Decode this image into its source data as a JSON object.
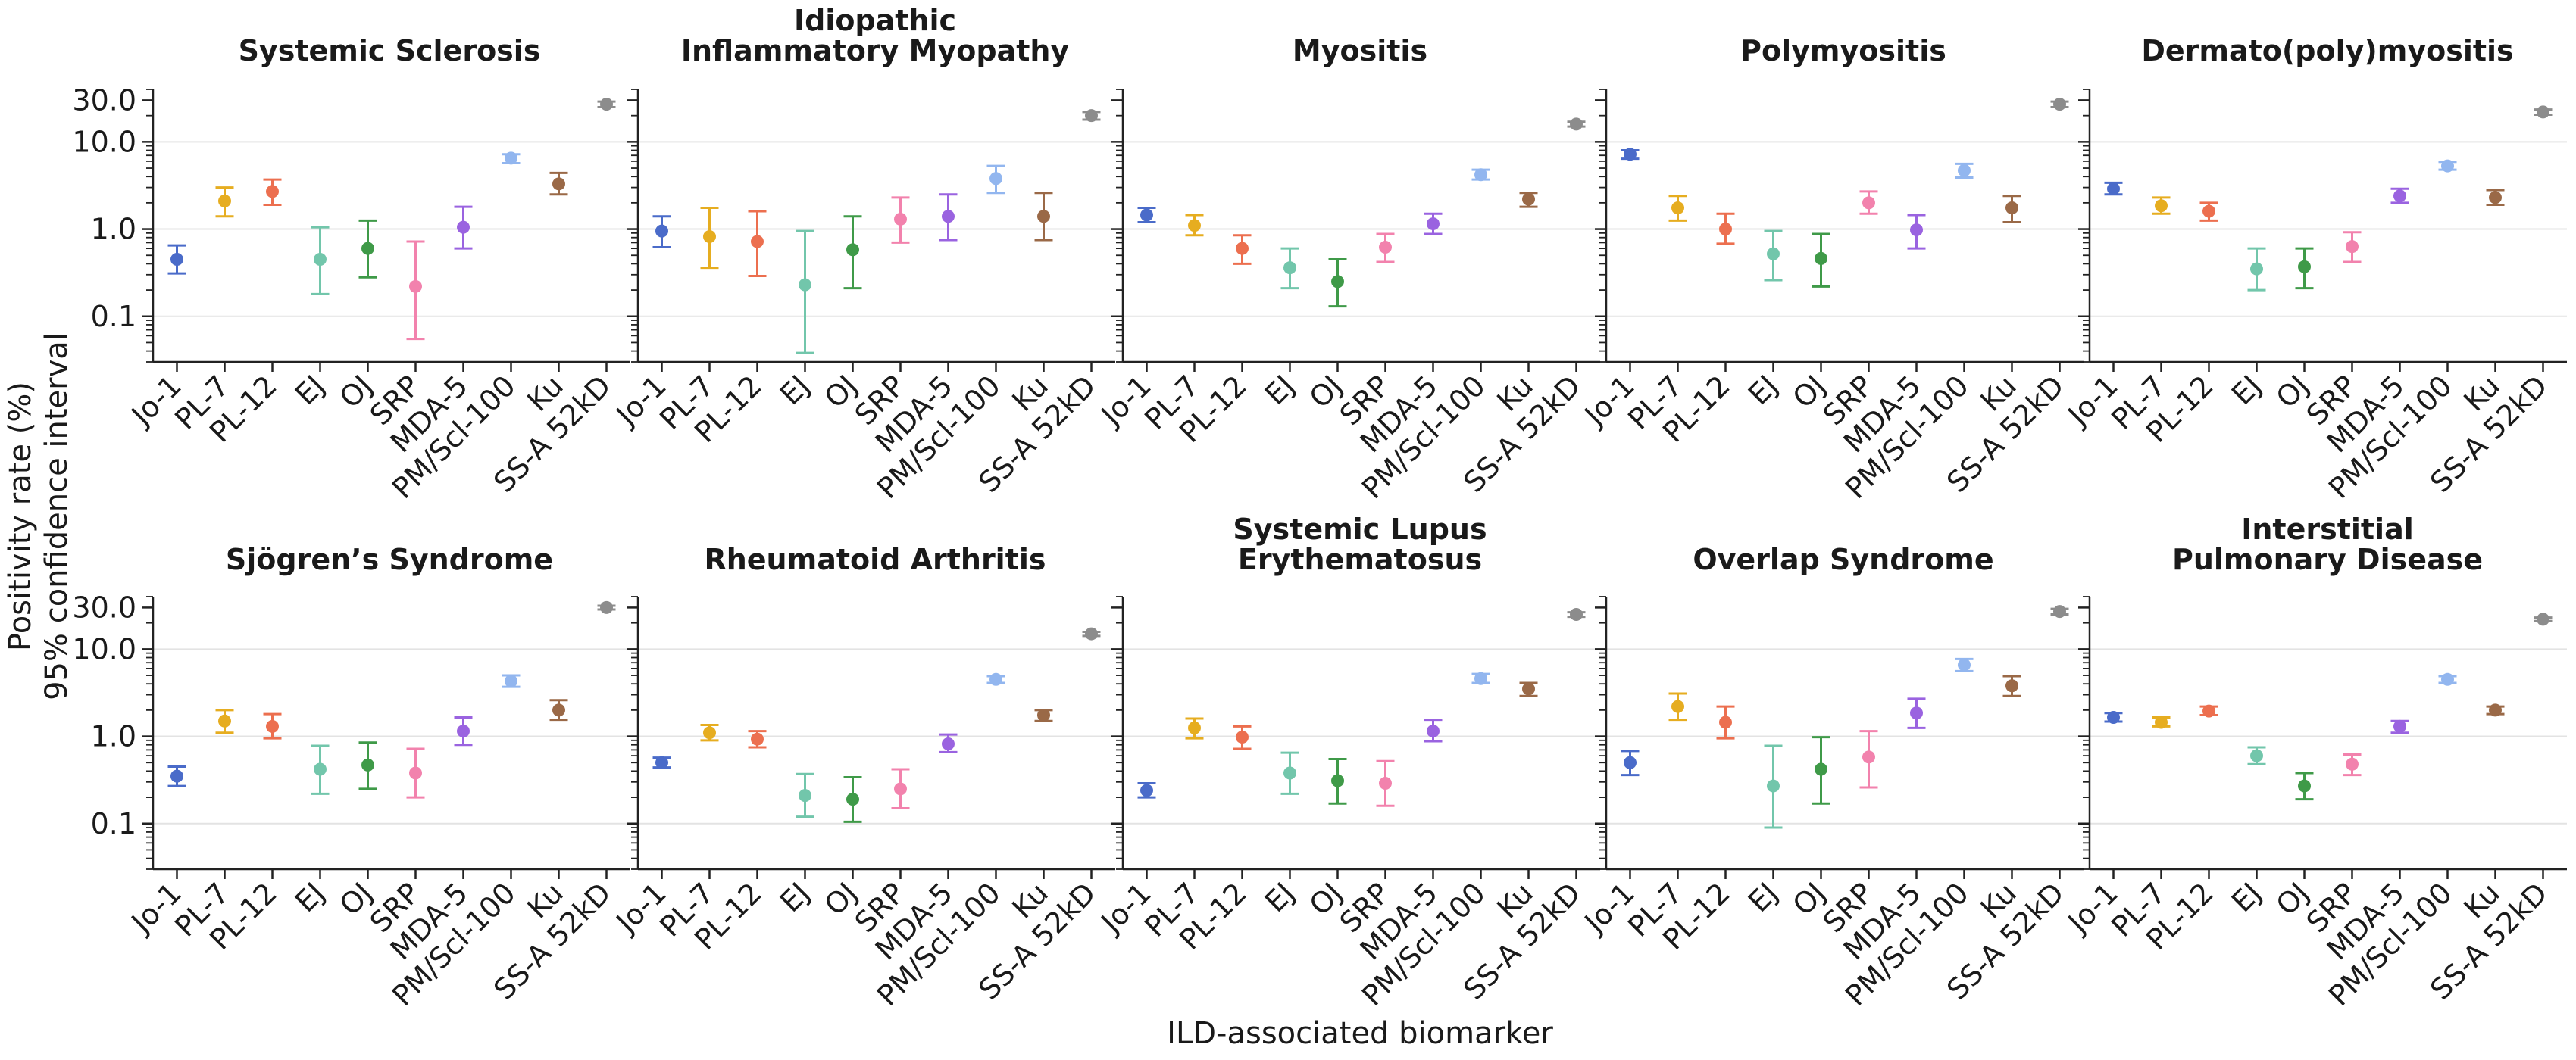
{
  "colors": {
    "Jo-1": "#4a6bc9",
    "PL-7": "#e6ad20",
    "PL-12": "#ec6f4f",
    "EJ": "#72c6ab",
    "OJ": "#3f9a48",
    "SRP": "#f282ad",
    "MDA-5": "#9a63e0",
    "PM/Scl-100": "#92b6ef",
    "Ku": "#9a6947",
    "SS-A 52kD": "#8c8c8c"
  },
  "figure": {
    "ylabel_line1": "Positivity rate (%)",
    "ylabel_line2": "95% confidence interval",
    "xlabel": "ILD-associated biomarker"
  },
  "chart_data": [
    {
      "type": "scatter",
      "title": "Systemic Sclerosis",
      "yscale": "log",
      "ylim": [
        0.03,
        40
      ],
      "yticks": [
        "0.1",
        "1.0",
        "10.0",
        "30.0"
      ],
      "categories": [
        "Jo-1",
        "PL-7",
        "PL-12",
        "EJ",
        "OJ",
        "SRP",
        "MDA-5",
        "PM/Scl-100",
        "Ku",
        "SS-A 52kD"
      ],
      "values": [
        0.45,
        2.1,
        2.7,
        0.45,
        0.6,
        0.22,
        1.05,
        6.5,
        3.3,
        27
      ],
      "lower": [
        0.31,
        1.4,
        1.9,
        0.18,
        0.28,
        0.055,
        0.6,
        5.7,
        2.5,
        25
      ],
      "upper": [
        0.65,
        3.0,
        3.7,
        1.05,
        1.25,
        0.72,
        1.8,
        7.2,
        4.4,
        29
      ]
    },
    {
      "type": "scatter",
      "title": "Idiopathic Inflammatory Myopathy",
      "title_lines": [
        "Idiopathic",
        "Inflammatory Myopathy"
      ],
      "yscale": "log",
      "ylim": [
        0.03,
        40
      ],
      "yticks": [
        "0.1",
        "1.0",
        "10.0",
        "30.0"
      ],
      "categories": [
        "Jo-1",
        "PL-7",
        "PL-12",
        "EJ",
        "OJ",
        "SRP",
        "MDA-5",
        "PM/Scl-100",
        "Ku",
        "SS-A 52kD"
      ],
      "values": [
        0.95,
        0.82,
        0.72,
        0.23,
        0.58,
        1.3,
        1.4,
        3.8,
        1.4,
        20
      ],
      "lower": [
        0.62,
        0.36,
        0.29,
        0.038,
        0.21,
        0.7,
        0.75,
        2.6,
        0.75,
        18
      ],
      "upper": [
        1.4,
        1.75,
        1.6,
        0.95,
        1.4,
        2.3,
        2.5,
        5.3,
        2.6,
        22
      ]
    },
    {
      "type": "scatter",
      "title": "Myositis",
      "yscale": "log",
      "ylim": [
        0.03,
        40
      ],
      "yticks": [
        "0.1",
        "1.0",
        "10.0",
        "30.0"
      ],
      "categories": [
        "Jo-1",
        "PL-7",
        "PL-12",
        "EJ",
        "OJ",
        "SRP",
        "MDA-5",
        "PM/Scl-100",
        "Ku",
        "SS-A 52kD"
      ],
      "values": [
        1.45,
        1.1,
        0.6,
        0.36,
        0.25,
        0.62,
        1.15,
        4.2,
        2.2,
        16
      ],
      "lower": [
        1.2,
        0.85,
        0.4,
        0.21,
        0.13,
        0.42,
        0.88,
        3.7,
        1.8,
        15
      ],
      "upper": [
        1.75,
        1.45,
        0.85,
        0.6,
        0.45,
        0.88,
        1.5,
        4.8,
        2.6,
        17
      ]
    },
    {
      "type": "scatter",
      "title": "Polymyositis",
      "yscale": "log",
      "ylim": [
        0.03,
        40
      ],
      "yticks": [
        "0.1",
        "1.0",
        "10.0",
        "30.0"
      ],
      "categories": [
        "Jo-1",
        "PL-7",
        "PL-12",
        "EJ",
        "OJ",
        "SRP",
        "MDA-5",
        "PM/Scl-100",
        "Ku",
        "SS-A 52kD"
      ],
      "values": [
        7.2,
        1.75,
        1.0,
        0.52,
        0.46,
        2.0,
        0.98,
        4.7,
        1.75,
        27
      ],
      "lower": [
        6.4,
        1.25,
        0.68,
        0.26,
        0.22,
        1.5,
        0.6,
        3.9,
        1.2,
        25
      ],
      "upper": [
        8.0,
        2.4,
        1.5,
        0.95,
        0.88,
        2.7,
        1.45,
        5.6,
        2.4,
        29
      ]
    },
    {
      "type": "scatter",
      "title": "Dermato(poly)myositis",
      "yscale": "log",
      "ylim": [
        0.03,
        40
      ],
      "yticks": [
        "0.1",
        "1.0",
        "10.0",
        "30.0"
      ],
      "categories": [
        "Jo-1",
        "PL-7",
        "PL-12",
        "EJ",
        "OJ",
        "SRP",
        "MDA-5",
        "PM/Scl-100",
        "Ku",
        "SS-A 52kD"
      ],
      "values": [
        2.9,
        1.85,
        1.6,
        0.35,
        0.37,
        0.63,
        2.4,
        5.3,
        2.3,
        22
      ],
      "lower": [
        2.5,
        1.5,
        1.25,
        0.2,
        0.21,
        0.42,
        2.0,
        4.8,
        1.9,
        20.5
      ],
      "upper": [
        3.4,
        2.3,
        2.0,
        0.6,
        0.6,
        0.92,
        2.9,
        5.9,
        2.8,
        23.5
      ]
    },
    {
      "type": "scatter",
      "title": "Sjögren’s Syndrome",
      "yscale": "log",
      "ylim": [
        0.03,
        40
      ],
      "yticks": [
        "0.1",
        "1.0",
        "10.0",
        "30.0"
      ],
      "categories": [
        "Jo-1",
        "PL-7",
        "PL-12",
        "EJ",
        "OJ",
        "SRP",
        "MDA-5",
        "PM/Scl-100",
        "Ku",
        "SS-A 52kD"
      ],
      "values": [
        0.35,
        1.5,
        1.3,
        0.42,
        0.47,
        0.38,
        1.15,
        4.3,
        2.0,
        30
      ],
      "lower": [
        0.27,
        1.1,
        0.95,
        0.22,
        0.25,
        0.2,
        0.8,
        3.7,
        1.55,
        28.5
      ],
      "upper": [
        0.45,
        2.0,
        1.8,
        0.78,
        0.85,
        0.72,
        1.65,
        5.0,
        2.6,
        31.5
      ]
    },
    {
      "type": "scatter",
      "title": "Rheumatoid Arthritis",
      "yscale": "log",
      "ylim": [
        0.03,
        40
      ],
      "yticks": [
        "0.1",
        "1.0",
        "10.0",
        "30.0"
      ],
      "categories": [
        "Jo-1",
        "PL-7",
        "PL-12",
        "EJ",
        "OJ",
        "SRP",
        "MDA-5",
        "PM/Scl-100",
        "Ku",
        "SS-A 52kD"
      ],
      "values": [
        0.5,
        1.1,
        0.93,
        0.21,
        0.19,
        0.25,
        0.82,
        4.5,
        1.75,
        15
      ],
      "lower": [
        0.44,
        0.9,
        0.75,
        0.12,
        0.105,
        0.15,
        0.66,
        4.1,
        1.5,
        14.2
      ],
      "upper": [
        0.57,
        1.35,
        1.15,
        0.37,
        0.34,
        0.42,
        1.05,
        4.9,
        2.0,
        15.8
      ]
    },
    {
      "type": "scatter",
      "title": "Systemic Lupus Erythematosus",
      "title_lines": [
        "Systemic Lupus",
        "Erythematosus"
      ],
      "yscale": "log",
      "ylim": [
        0.03,
        40
      ],
      "yticks": [
        "0.1",
        "1.0",
        "10.0",
        "30.0"
      ],
      "categories": [
        "Jo-1",
        "PL-7",
        "PL-12",
        "EJ",
        "OJ",
        "SRP",
        "MDA-5",
        "PM/Scl-100",
        "Ku",
        "SS-A 52kD"
      ],
      "values": [
        0.24,
        1.25,
        0.98,
        0.38,
        0.31,
        0.29,
        1.15,
        4.6,
        3.5,
        25
      ],
      "lower": [
        0.2,
        0.95,
        0.72,
        0.22,
        0.17,
        0.16,
        0.88,
        4.1,
        2.9,
        23.5
      ],
      "upper": [
        0.29,
        1.6,
        1.3,
        0.65,
        0.55,
        0.52,
        1.55,
        5.2,
        4.1,
        26.5
      ]
    },
    {
      "type": "scatter",
      "title": "Overlap Syndrome",
      "yscale": "log",
      "ylim": [
        0.03,
        40
      ],
      "yticks": [
        "0.1",
        "1.0",
        "10.0",
        "30.0"
      ],
      "categories": [
        "Jo-1",
        "PL-7",
        "PL-12",
        "EJ",
        "OJ",
        "SRP",
        "MDA-5",
        "PM/Scl-100",
        "Ku",
        "SS-A 52kD"
      ],
      "values": [
        0.5,
        2.2,
        1.45,
        0.27,
        0.42,
        0.58,
        1.85,
        6.6,
        3.8,
        27
      ],
      "lower": [
        0.36,
        1.55,
        0.95,
        0.09,
        0.17,
        0.26,
        1.25,
        5.6,
        2.9,
        25
      ],
      "upper": [
        0.68,
        3.1,
        2.2,
        0.78,
        0.98,
        1.15,
        2.7,
        7.7,
        4.9,
        29
      ]
    },
    {
      "type": "scatter",
      "title": "Interstitial Pulmonary Disease",
      "title_lines": [
        "Interstitial",
        "Pulmonary Disease"
      ],
      "yscale": "log",
      "ylim": [
        0.03,
        40
      ],
      "yticks": [
        "0.1",
        "1.0",
        "10.0",
        "30.0"
      ],
      "categories": [
        "Jo-1",
        "PL-7",
        "PL-12",
        "EJ",
        "OJ",
        "SRP",
        "MDA-5",
        "PM/Scl-100",
        "Ku",
        "SS-A 52kD"
      ],
      "values": [
        1.65,
        1.45,
        1.95,
        0.6,
        0.27,
        0.48,
        1.3,
        4.5,
        2.0,
        22
      ],
      "lower": [
        1.48,
        1.3,
        1.75,
        0.48,
        0.19,
        0.36,
        1.1,
        4.1,
        1.8,
        21
      ],
      "upper": [
        1.85,
        1.65,
        2.2,
        0.75,
        0.38,
        0.62,
        1.5,
        4.9,
        2.2,
        23
      ]
    }
  ]
}
